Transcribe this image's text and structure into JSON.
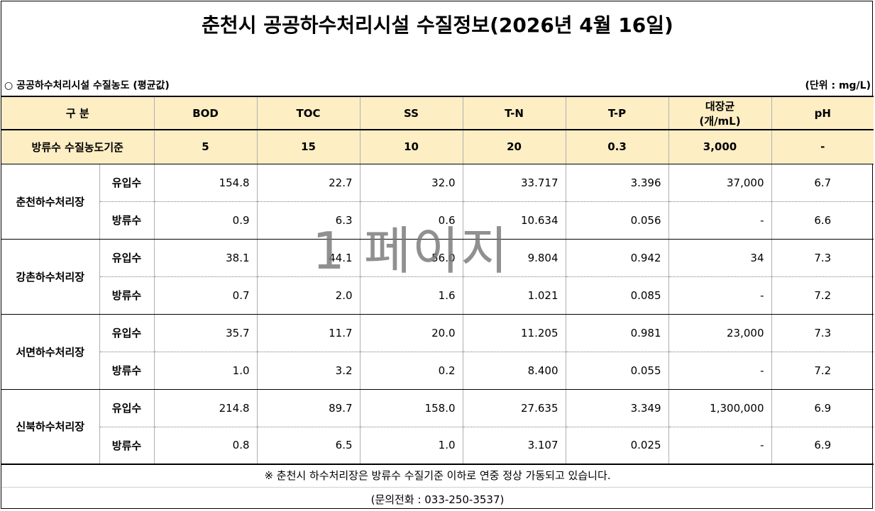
{
  "title": "춘천시 공공하수처리시설 수질정보(2026년 4월 16일)",
  "subtitle": "○ 공공하수처리시설 수질농도 (평균값)",
  "unit_label": "(단위 : mg/L)",
  "table": {
    "headers": {
      "category": "구  분",
      "bod": "BOD",
      "toc": "TOC",
      "ss": "SS",
      "tn": "T-N",
      "tp": "T-P",
      "coliform_line1": "대장균",
      "coliform_line2": "(개/mL)",
      "ph": "pH"
    },
    "standard": {
      "label": "방류수 수질농도기준",
      "bod": "5",
      "toc": "15",
      "ss": "10",
      "tn": "20",
      "tp": "0.3",
      "coliform": "3,000",
      "ph": "-"
    },
    "plants": [
      {
        "name": "춘천하수처리장",
        "rows": [
          {
            "kind": "유입수",
            "bod": "154.8",
            "toc": "22.7",
            "ss": "32.0",
            "tn": "33.717",
            "tp": "3.396",
            "coliform": "37,000",
            "ph": "6.7"
          },
          {
            "kind": "방류수",
            "bod": "0.9",
            "toc": "6.3",
            "ss": "0.6",
            "tn": "10.634",
            "tp": "0.056",
            "coliform": "-",
            "ph": "6.6"
          }
        ]
      },
      {
        "name": "강촌하수처리장",
        "rows": [
          {
            "kind": "유입수",
            "bod": "38.1",
            "toc": "44.1",
            "ss": "56.0",
            "tn": "9.804",
            "tp": "0.942",
            "coliform": "34",
            "ph": "7.3"
          },
          {
            "kind": "방류수",
            "bod": "0.7",
            "toc": "2.0",
            "ss": "1.6",
            "tn": "1.021",
            "tp": "0.085",
            "coliform": "-",
            "ph": "7.2"
          }
        ]
      },
      {
        "name": "서면하수처리장",
        "rows": [
          {
            "kind": "유입수",
            "bod": "35.7",
            "toc": "11.7",
            "ss": "20.0",
            "tn": "11.205",
            "tp": "0.981",
            "coliform": "23,000",
            "ph": "7.3"
          },
          {
            "kind": "방류수",
            "bod": "1.0",
            "toc": "3.2",
            "ss": "0.2",
            "tn": "8.400",
            "tp": "0.055",
            "coliform": "-",
            "ph": "7.2"
          }
        ]
      },
      {
        "name": "신북하수처리장",
        "rows": [
          {
            "kind": "유입수",
            "bod": "214.8",
            "toc": "89.7",
            "ss": "158.0",
            "tn": "27.635",
            "tp": "3.349",
            "coliform": "1,300,000",
            "ph": "6.9"
          },
          {
            "kind": "방류수",
            "bod": "0.8",
            "toc": "6.5",
            "ss": "1.0",
            "tn": "3.107",
            "tp": "0.025",
            "coliform": "-",
            "ph": "6.9"
          }
        ]
      }
    ]
  },
  "note": "※ 춘천시 하수처리장은 방류수 수질기준 이하로 연중 정상 가동되고 있습니다.",
  "contact": "(문의전화 : 033-250-3537)",
  "watermark": "1 페이지"
}
